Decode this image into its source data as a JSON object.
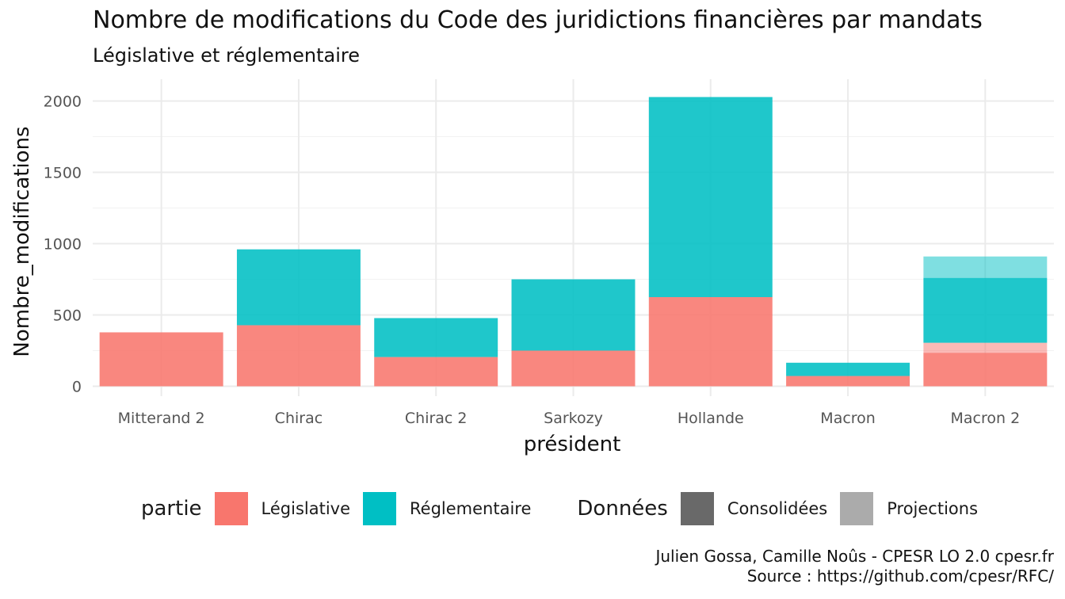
{
  "title": "Nombre de modifications du Code des juridictions financières par mandats",
  "subtitle": "Législative et réglementaire",
  "caption": {
    "line1": "Julien Gossa, Camille Noûs - CPESR LO 2.0 cpesr.fr",
    "line2": "Source : https://github.com/cpesr/RFC/"
  },
  "legend": {
    "fill_title": "partie",
    "fill_items": [
      {
        "label": "Législative",
        "color": "#F8766D"
      },
      {
        "label": "Réglementaire",
        "color": "#00BFC4"
      }
    ],
    "alpha_title": "Données",
    "alpha_items": [
      {
        "label": "Consolidées",
        "color": "#696969"
      },
      {
        "label": "Projections",
        "color": "#ABABAB"
      }
    ]
  },
  "chart_data": {
    "type": "bar",
    "stacked": true,
    "title": "Nombre de modifications du Code des juridictions financières par mandats",
    "subtitle": "Législative et réglementaire",
    "xlabel": "président",
    "ylabel": "Nombre_modifications",
    "ylim": [
      0,
      2100
    ],
    "yticks": [
      0,
      500,
      1000,
      1500,
      2000
    ],
    "grid": true,
    "legend_position": "bottom",
    "categories": [
      "Mitterand 2",
      "Chirac",
      "Chirac 2",
      "Sarkozy",
      "Hollande",
      "Macron",
      "Macron 2"
    ],
    "series": [
      {
        "name": "Législative",
        "data": "Consolidées",
        "color": "#F8766D",
        "values": [
          378,
          428,
          205,
          250,
          625,
          72,
          235
        ]
      },
      {
        "name": "Législative",
        "data": "Projections",
        "color": "#F8766D",
        "values": [
          0,
          0,
          0,
          0,
          0,
          0,
          70
        ]
      },
      {
        "name": "Réglementaire",
        "data": "Consolidées",
        "color": "#00BFC4",
        "values": [
          0,
          532,
          273,
          500,
          1403,
          93,
          455
        ]
      },
      {
        "name": "Réglementaire",
        "data": "Projections",
        "color": "#00BFC4",
        "values": [
          0,
          0,
          0,
          0,
          0,
          0,
          150
        ]
      }
    ]
  }
}
